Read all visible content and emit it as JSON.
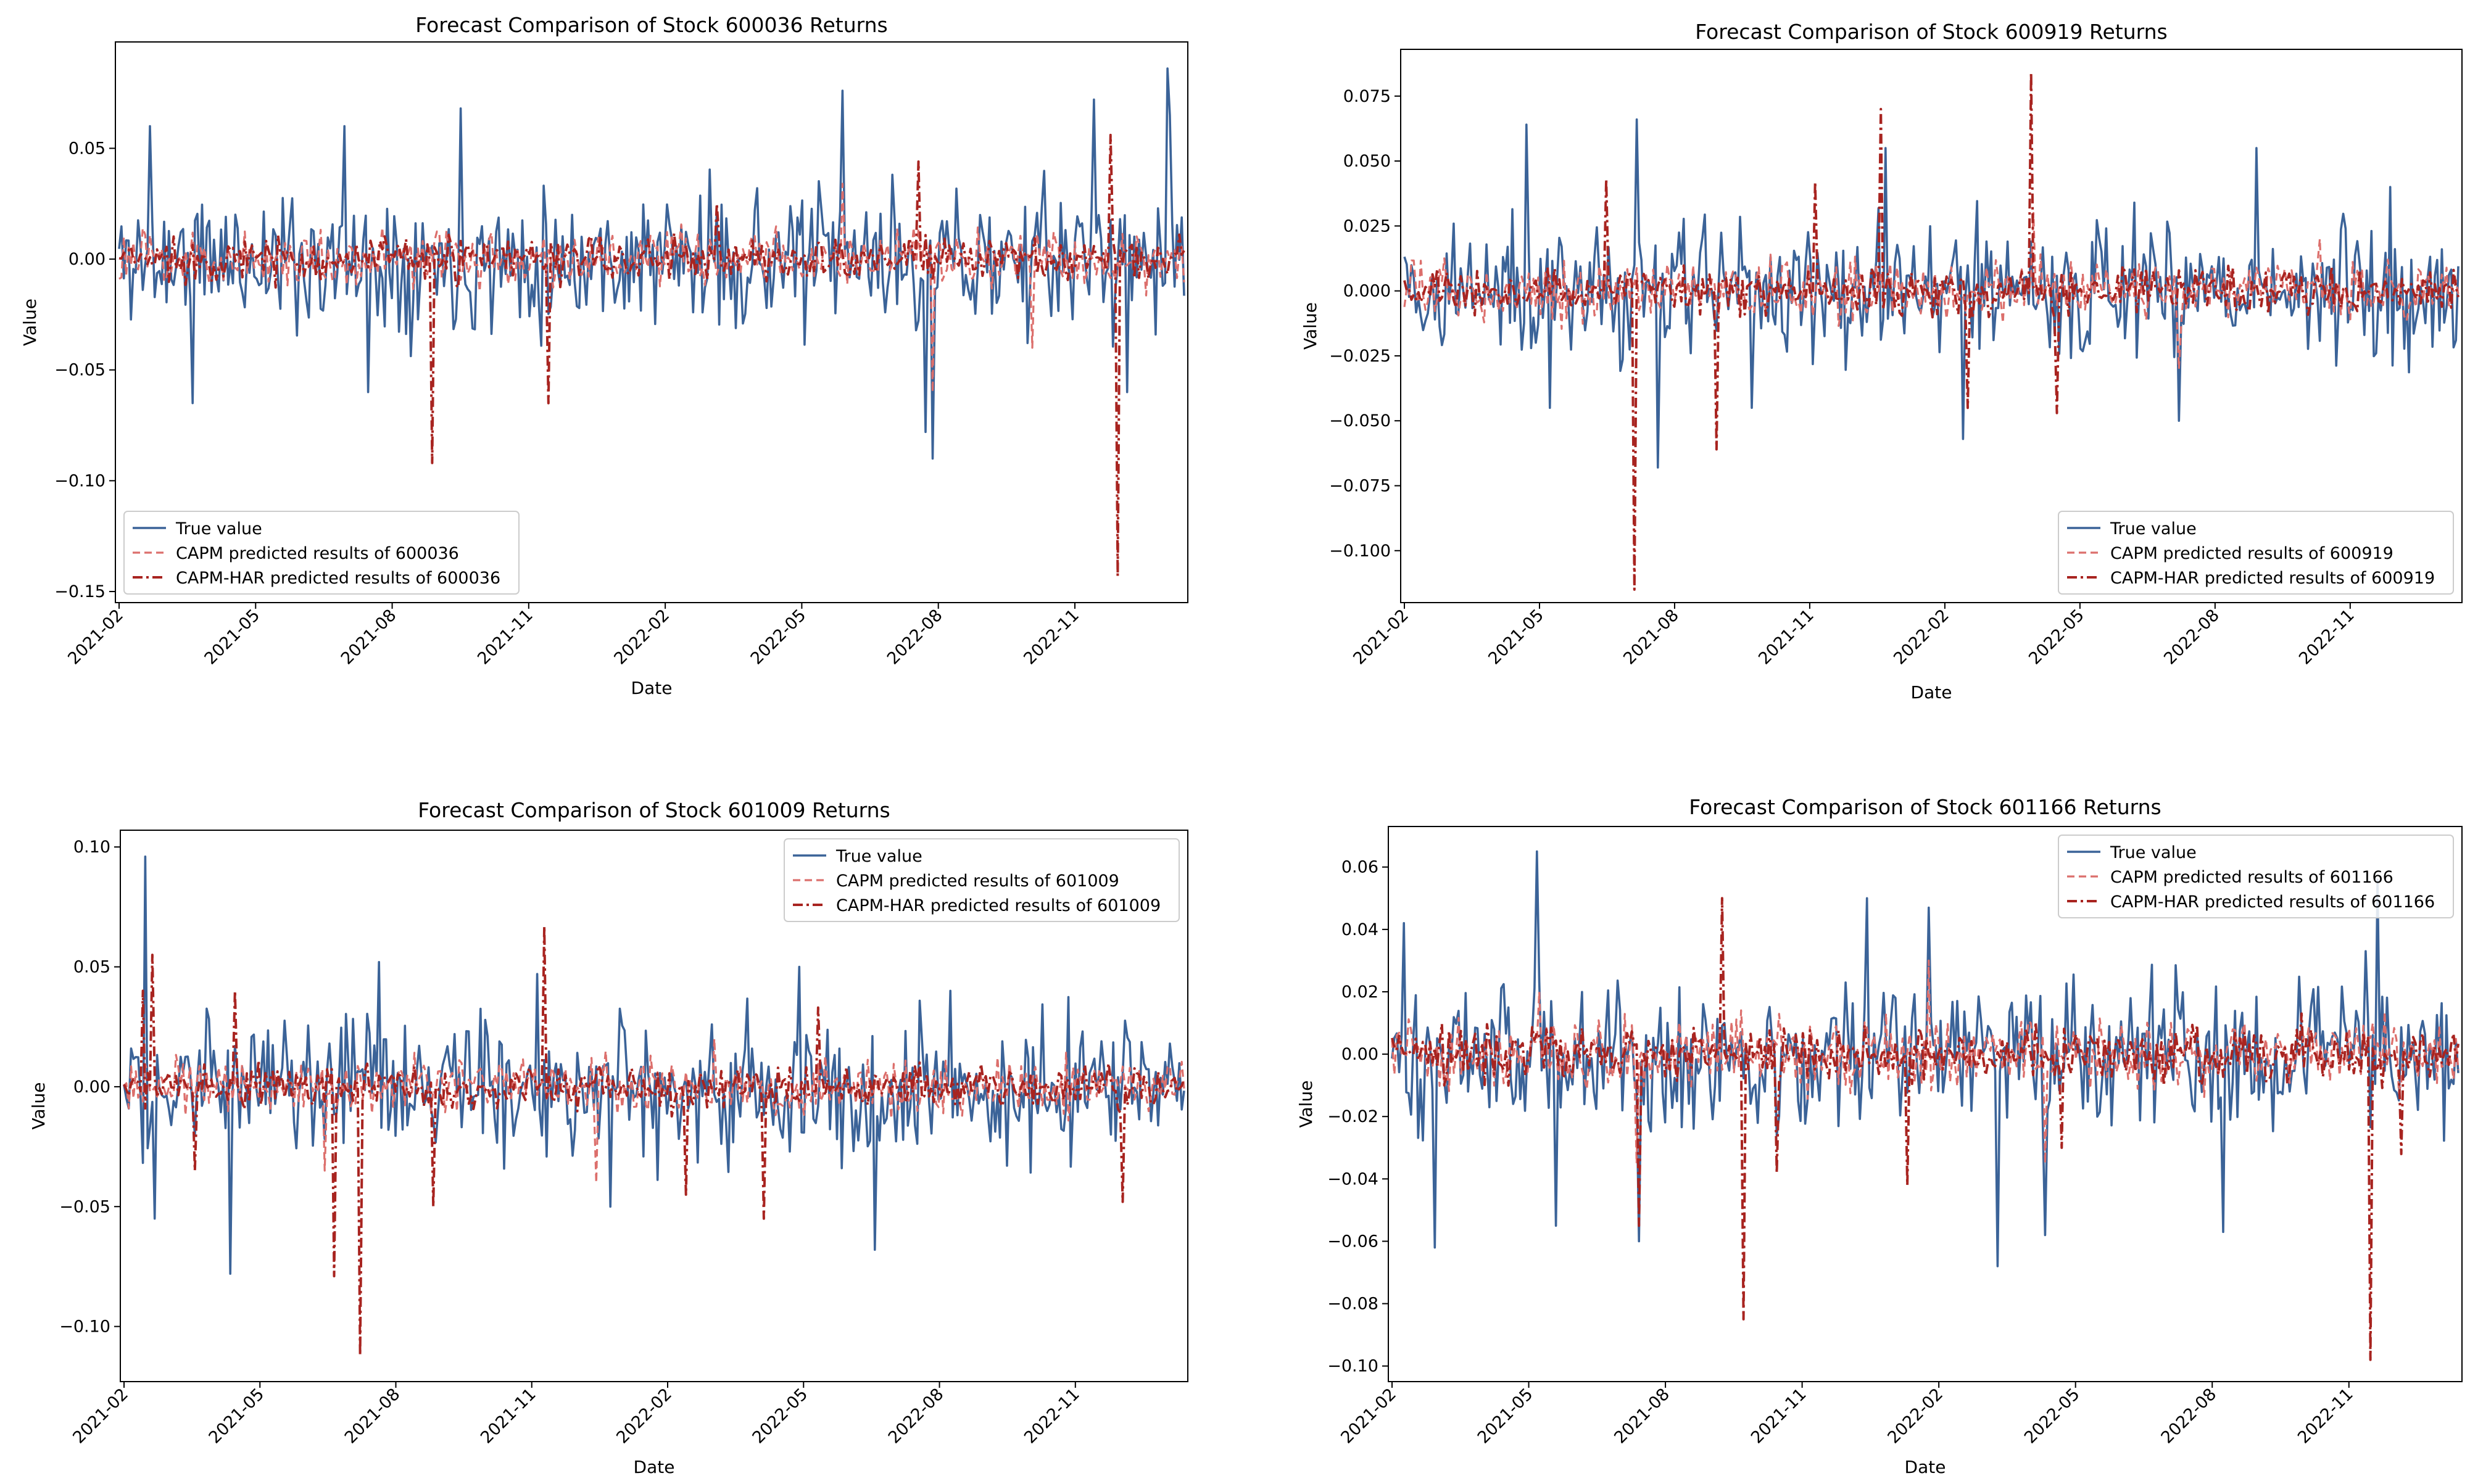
{
  "figure": {
    "colors": {
      "true": "#3b6398",
      "capm": "#dc6f6c",
      "har": "#a82420"
    }
  },
  "chart_data": [
    {
      "type": "line",
      "title": "Forecast Comparison of Stock 600036 Returns",
      "xlabel": "Date",
      "ylabel": "Value",
      "x_ticks": [
        "2021-02",
        "2021-05",
        "2021-08",
        "2021-11",
        "2022-02",
        "2022-05",
        "2022-08",
        "2022-11"
      ],
      "y_ticks": [
        "0.05",
        "0.00",
        "−0.05",
        "−0.10",
        "−0.15"
      ],
      "y_tick_values": [
        0.05,
        0.0,
        -0.05,
        -0.1,
        -0.15
      ],
      "ylim": [
        -0.155,
        0.098
      ],
      "legend_position": "lower-left",
      "series": [
        {
          "name": "True value",
          "style": "solid",
          "seed": 11,
          "amp": 0.022,
          "spikes": [
            [
              13,
              0.06
            ],
            [
              31,
              -0.065
            ],
            [
              95,
              0.06
            ],
            [
              105,
              -0.06
            ],
            [
              144,
              0.068
            ],
            [
              305,
              0.076
            ],
            [
              340,
              -0.078
            ],
            [
              343,
              -0.09
            ],
            [
              411,
              0.072
            ],
            [
              425,
              -0.06
            ],
            [
              442,
              0.086
            ],
            [
              443,
              0.065
            ]
          ]
        },
        {
          "name": "CAPM predicted results of 600036",
          "style": "dashed",
          "seed": 23,
          "amp": 0.009,
          "spikes": [
            [
              305,
              0.034
            ],
            [
              343,
              -0.06
            ],
            [
              385,
              -0.04
            ]
          ]
        },
        {
          "name": "CAPM-HAR predicted results of 600036",
          "style": "dashdot",
          "seed": 37,
          "amp": 0.007,
          "spikes": [
            [
              132,
              -0.092
            ],
            [
              181,
              -0.065
            ],
            [
              337,
              0.044
            ],
            [
              418,
              0.056
            ],
            [
              421,
              -0.143
            ],
            [
              252,
              0.025
            ]
          ]
        }
      ]
    },
    {
      "type": "line",
      "title": "Forecast Comparison of Stock 600919 Returns",
      "xlabel": "Date",
      "ylabel": "Value",
      "x_ticks": [
        "2021-02",
        "2021-05",
        "2021-08",
        "2021-11",
        "2022-02",
        "2022-05",
        "2022-08",
        "2022-11"
      ],
      "y_ticks": [
        "0.075",
        "0.050",
        "0.025",
        "0.000",
        "−0.025",
        "−0.050",
        "−0.075",
        "−0.100"
      ],
      "y_tick_values": [
        0.075,
        0.05,
        0.025,
        0.0,
        -0.025,
        -0.05,
        -0.075,
        -0.1
      ],
      "ylim": [
        -0.12,
        0.093
      ],
      "legend_position": "lower-right",
      "series": [
        {
          "name": "True value",
          "style": "solid",
          "seed": 41,
          "amp": 0.019,
          "spikes": [
            [
              52,
              0.064
            ],
            [
              62,
              -0.045
            ],
            [
              99,
              0.066
            ],
            [
              108,
              -0.068
            ],
            [
              148,
              -0.045
            ],
            [
              205,
              0.055
            ],
            [
              238,
              -0.057
            ],
            [
              330,
              -0.05
            ],
            [
              363,
              0.055
            ],
            [
              420,
              0.04
            ]
          ]
        },
        {
          "name": "CAPM predicted results of 600919",
          "style": "dashed",
          "seed": 53,
          "amp": 0.008,
          "spikes": [
            [
              268,
              0.03
            ],
            [
              330,
              -0.03
            ],
            [
              390,
              0.02
            ]
          ]
        },
        {
          "name": "CAPM-HAR predicted results of 600919",
          "style": "dashdot",
          "seed": 67,
          "amp": 0.006,
          "spikes": [
            [
              86,
              0.043
            ],
            [
              98,
              -0.115
            ],
            [
              133,
              -0.061
            ],
            [
              175,
              0.042
            ],
            [
              203,
              0.07
            ],
            [
              240,
              -0.045
            ],
            [
              267,
              0.084
            ],
            [
              278,
              -0.047
            ]
          ]
        }
      ]
    },
    {
      "type": "line",
      "title": "Forecast Comparison of Stock 601009 Returns",
      "xlabel": "Date",
      "ylabel": "Value",
      "x_ticks": [
        "2021-02",
        "2021-05",
        "2021-08",
        "2021-11",
        "2022-02",
        "2022-05",
        "2022-08",
        "2022-11"
      ],
      "y_ticks": [
        "0.10",
        "0.05",
        "0.00",
        "−0.05",
        "−0.10"
      ],
      "y_tick_values": [
        0.1,
        0.05,
        0.0,
        -0.05,
        -0.1
      ],
      "ylim": [
        -0.123,
        0.107
      ],
      "legend_position": "upper-right",
      "series": [
        {
          "name": "True value",
          "style": "solid",
          "seed": 71,
          "amp": 0.02,
          "spikes": [
            [
              9,
              0.096
            ],
            [
              13,
              -0.055
            ],
            [
              45,
              -0.078
            ],
            [
              108,
              0.052
            ],
            [
              175,
              0.047
            ],
            [
              206,
              -0.05
            ],
            [
              286,
              0.05
            ],
            [
              318,
              -0.068
            ],
            [
              350,
              0.04
            ]
          ]
        },
        {
          "name": "CAPM predicted results of 601009",
          "style": "dashed",
          "seed": 83,
          "amp": 0.008,
          "spikes": [
            [
              85,
              -0.035
            ],
            [
              200,
              -0.04
            ],
            [
              250,
              0.02
            ]
          ]
        },
        {
          "name": "CAPM-HAR predicted results of 601009",
          "style": "dashdot",
          "seed": 97,
          "amp": 0.006,
          "spikes": [
            [
              8,
              0.04
            ],
            [
              12,
              0.055
            ],
            [
              30,
              -0.035
            ],
            [
              47,
              0.04
            ],
            [
              89,
              -0.079
            ],
            [
              100,
              -0.112
            ],
            [
              131,
              -0.05
            ],
            [
              178,
              0.067
            ],
            [
              238,
              -0.045
            ],
            [
              271,
              -0.055
            ],
            [
              294,
              0.033
            ],
            [
              423,
              -0.048
            ]
          ]
        }
      ]
    },
    {
      "type": "line",
      "title": "Forecast Comparison of Stock 601166 Returns",
      "xlabel": "Date",
      "ylabel": "Value",
      "x_ticks": [
        "2021-02",
        "2021-05",
        "2021-08",
        "2021-11",
        "2022-02",
        "2022-05",
        "2022-08",
        "2022-11"
      ],
      "y_ticks": [
        "0.06",
        "0.04",
        "0.02",
        "0.00",
        "−0.02",
        "−0.04",
        "−0.06",
        "−0.08",
        "−0.10"
      ],
      "y_tick_values": [
        0.06,
        0.04,
        0.02,
        0.0,
        -0.02,
        -0.04,
        -0.06,
        -0.08,
        -0.1
      ],
      "ylim": [
        -0.105,
        0.073
      ],
      "legend_position": "upper-right",
      "series": [
        {
          "name": "True value",
          "style": "solid",
          "seed": 101,
          "amp": 0.017,
          "spikes": [
            [
              5,
              0.042
            ],
            [
              18,
              -0.062
            ],
            [
              61,
              0.065
            ],
            [
              69,
              -0.055
            ],
            [
              104,
              -0.06
            ],
            [
              200,
              0.05
            ],
            [
              226,
              0.047
            ],
            [
              255,
              -0.068
            ],
            [
              275,
              -0.058
            ],
            [
              350,
              -0.057
            ],
            [
              410,
              0.033
            ],
            [
              415,
              0.056
            ]
          ]
        },
        {
          "name": "CAPM predicted results of 601166",
          "style": "dashed",
          "seed": 113,
          "amp": 0.008,
          "spikes": [
            [
              62,
              0.02
            ],
            [
              226,
              0.03
            ],
            [
              275,
              -0.035
            ],
            [
              103,
              -0.035
            ]
          ]
        },
        {
          "name": "CAPM-HAR predicted results of 601166",
          "style": "dashdot",
          "seed": 127,
          "amp": 0.006,
          "spikes": [
            [
              104,
              -0.055
            ],
            [
              139,
              0.05
            ],
            [
              148,
              -0.085
            ],
            [
              162,
              -0.038
            ],
            [
              217,
              -0.042
            ],
            [
              282,
              -0.03
            ],
            [
              383,
              0.013
            ],
            [
              412,
              -0.098
            ],
            [
              425,
              -0.032
            ]
          ]
        }
      ]
    }
  ]
}
